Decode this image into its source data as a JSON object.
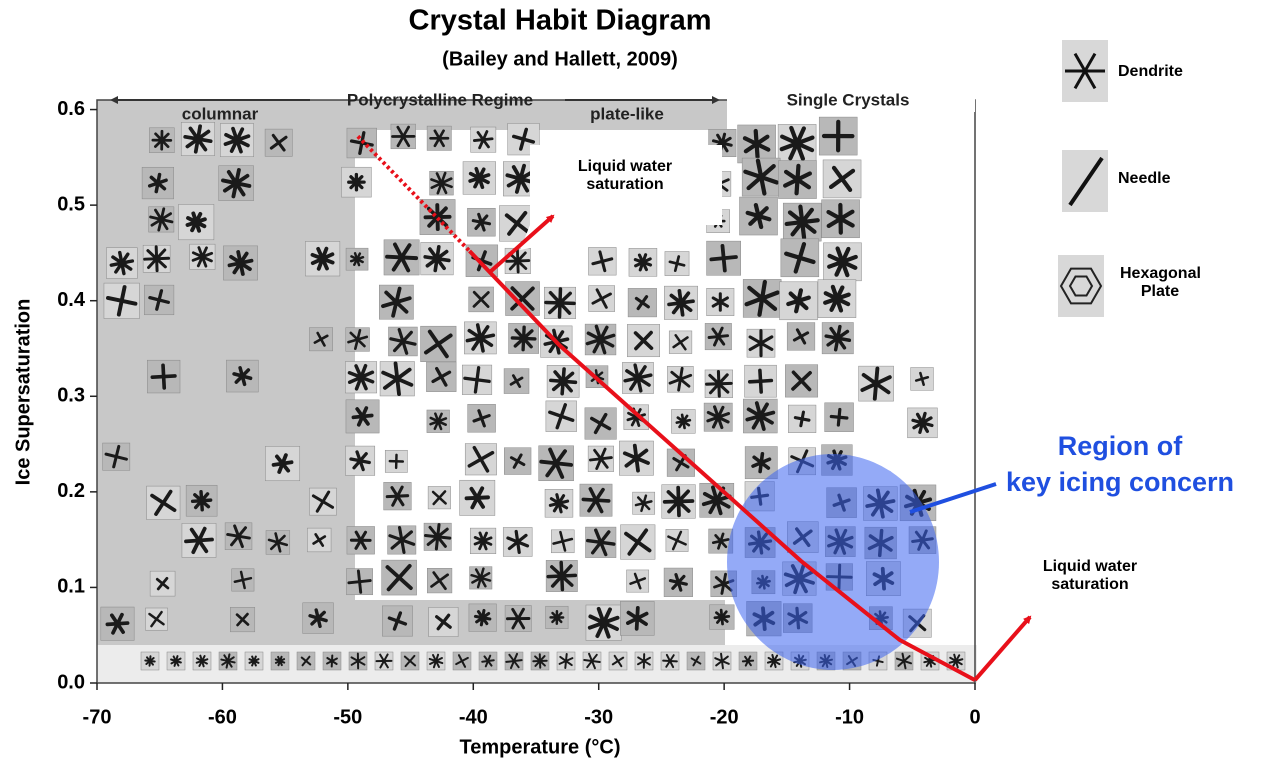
{
  "chart_data": {
    "type": "line",
    "title": "Crystal Habit Diagram",
    "subtitle": "(Bailey and Hallett, 2009)",
    "x_label": "Temperature (°C)",
    "y_label": "Ice Supersaturation",
    "xlim": [
      -70,
      0
    ],
    "ylim": [
      0,
      0.61
    ],
    "xticks": [
      -70,
      -60,
      -50,
      -40,
      -30,
      -20,
      -10,
      0
    ],
    "yticks": [
      {
        "value": 0,
        "label": "0.0"
      },
      0.1,
      0.2,
      0.3,
      0.4,
      0.5,
      0.6
    ],
    "x": [
      -49.2,
      -40.3,
      -33.1,
      -21.9,
      -13.9,
      -6.0,
      0
    ],
    "values": [
      0.572,
      0.452,
      0.353,
      0.222,
      0.128,
      0.045,
      0.003
    ],
    "color": "#e8101a",
    "dotted_first_segment": true,
    "regimes": [
      "columnar",
      "Polycrystalline Regime",
      "plate-like",
      "Single Crystals"
    ],
    "annotations": [
      "Liquid water\nsaturation",
      "Liquid water\nsaturation"
    ],
    "highlight_label": "Region of\nkey icing concern",
    "habits": [
      "Dendrite",
      "Needle",
      "Hexagonal\nPlate"
    ]
  }
}
